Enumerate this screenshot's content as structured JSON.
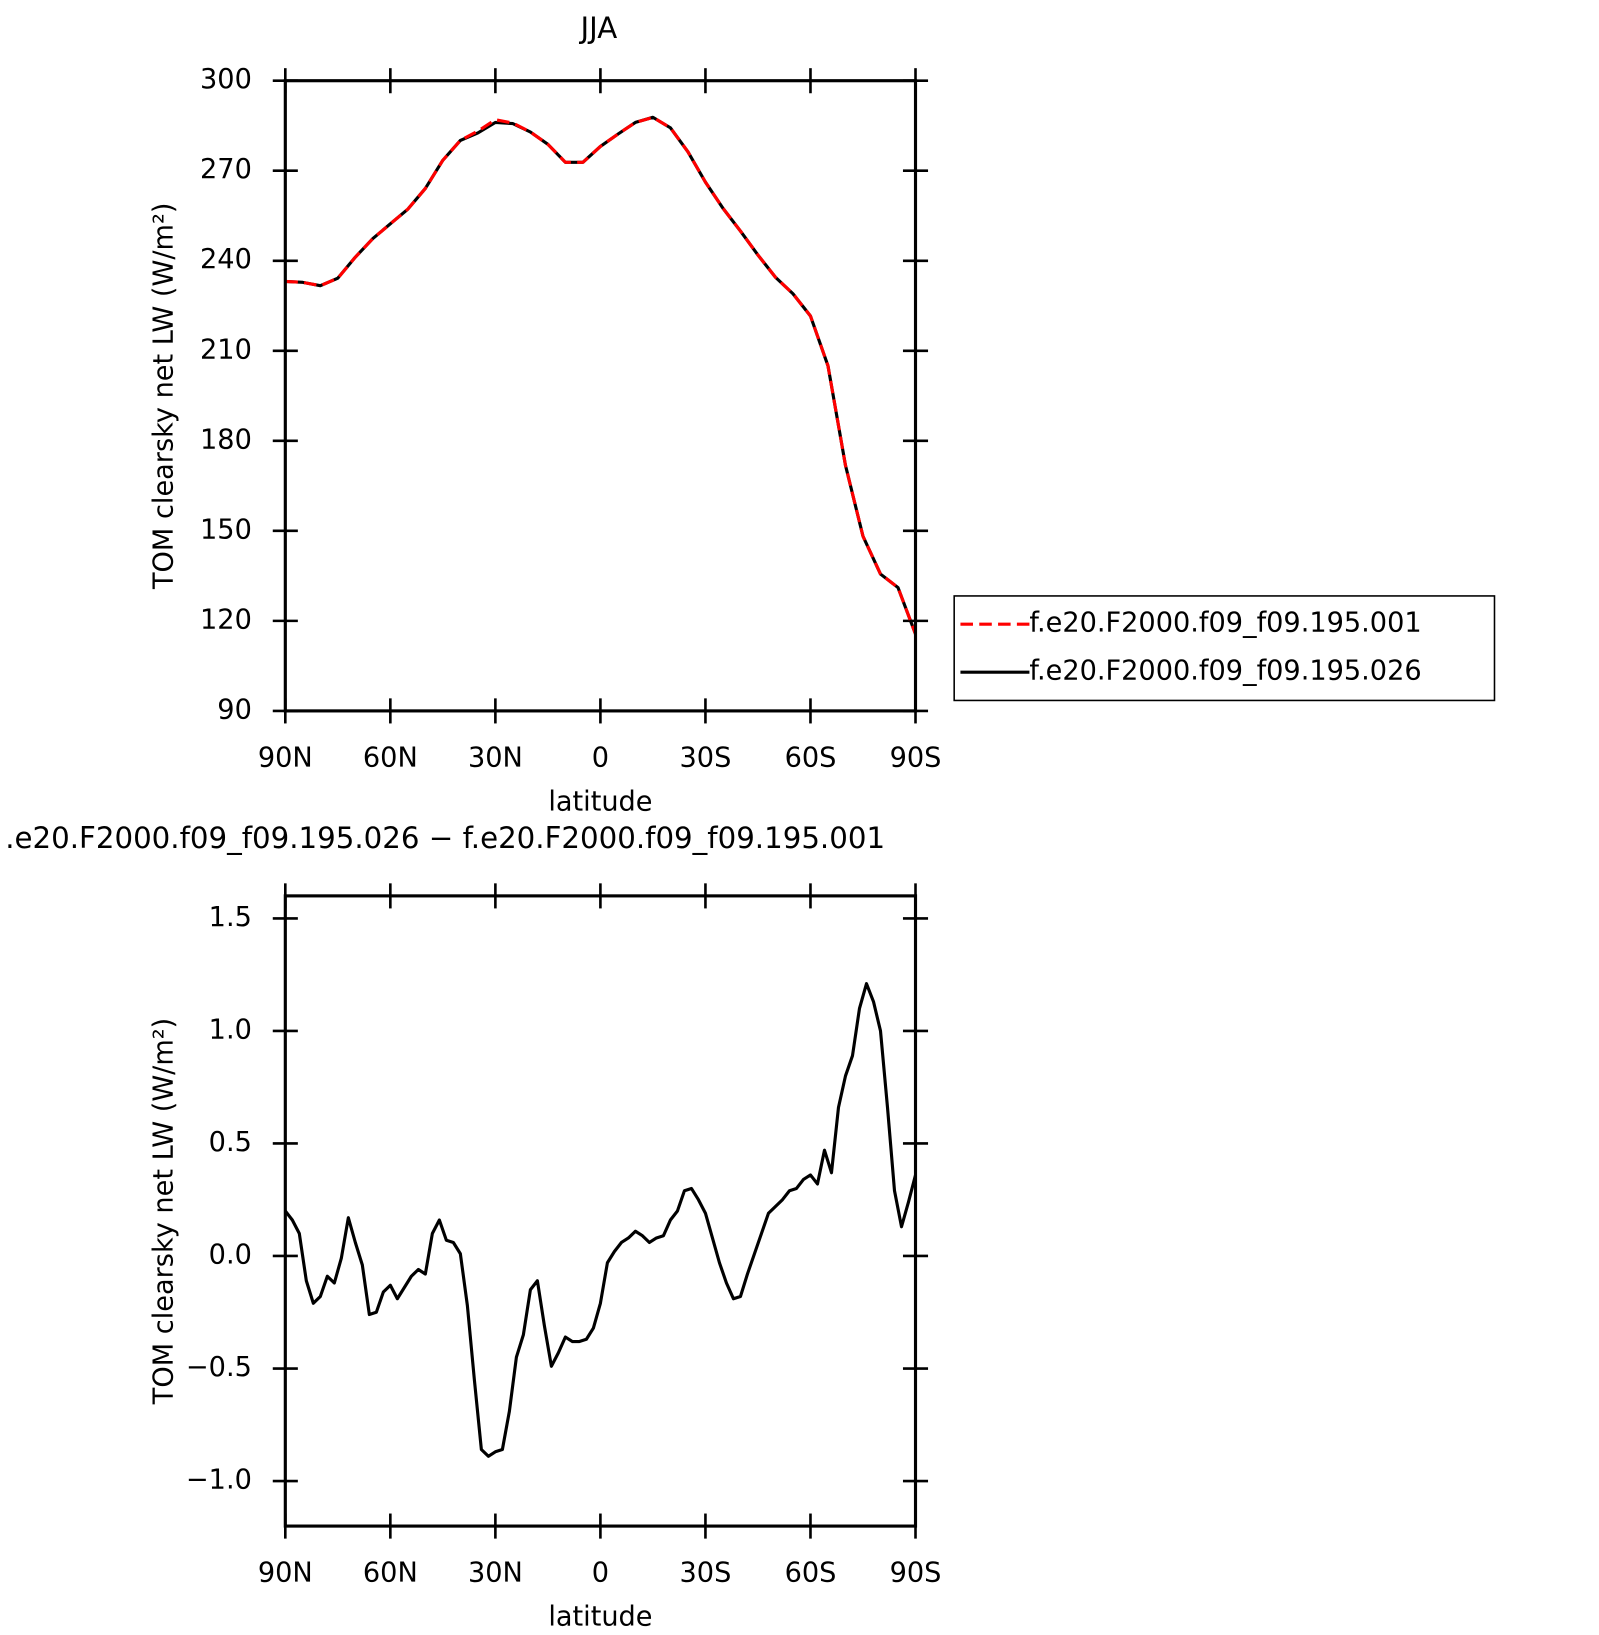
{
  "chart_data": [
    {
      "type": "line",
      "title": "JJA",
      "xlabel": "latitude",
      "ylabel": "TOM clearsky net LW (W/m²)",
      "x": [
        90,
        85,
        80,
        75,
        70,
        65,
        60,
        55,
        50,
        45,
        40,
        35,
        30,
        25,
        20,
        15,
        10,
        5,
        0,
        -5,
        -10,
        -15,
        -20,
        -25,
        -30,
        -35,
        -40,
        -45,
        -50,
        -55,
        -60,
        -65,
        -70,
        -75,
        -80,
        -85,
        -90
      ],
      "series": [
        {
          "name": "f.e20.F2000.f09_f09.195.001",
          "color": "#ff0000",
          "linestyle": "dashed",
          "values": [
            233.1,
            232.8,
            231.7,
            234.2,
            241.2,
            247.4,
            252.3,
            257.2,
            264.1,
            273.5,
            280.1,
            283.2,
            287.0,
            285.9,
            282.9,
            278.8,
            272.8,
            272.8,
            278.1,
            282.2,
            286.1,
            287.8,
            284.3,
            276.3,
            266.2,
            257.5,
            249.9,
            241.9,
            234.5,
            229.0,
            221.6,
            205.0,
            171.8,
            148.2,
            135.6,
            131.1,
            115.6
          ]
        },
        {
          "name": "f.e20.F2000.f09_f09.195.026",
          "color": "#000000",
          "linestyle": "solid",
          "values": [
            233.1,
            232.8,
            231.7,
            234.2,
            241.2,
            247.4,
            252.3,
            257.2,
            264.1,
            273.5,
            280.1,
            282.6,
            286.1,
            285.7,
            282.9,
            278.8,
            272.8,
            272.8,
            278.1,
            282.2,
            286.1,
            287.8,
            284.3,
            276.3,
            266.2,
            257.5,
            249.9,
            241.9,
            234.5,
            229.0,
            221.6,
            205.0,
            171.8,
            148.2,
            135.6,
            131.1,
            115.6
          ]
        }
      ],
      "xlim": [
        90,
        -90
      ],
      "xticks": [
        {
          "value": 90,
          "label": "90N"
        },
        {
          "value": 60,
          "label": "60N"
        },
        {
          "value": 30,
          "label": "30N"
        },
        0,
        {
          "value": -30,
          "label": "30S"
        },
        {
          "value": -60,
          "label": "60S"
        },
        {
          "value": -90,
          "label": "90S"
        }
      ],
      "ylim": [
        90,
        300
      ],
      "yticks": [
        90,
        120,
        150,
        180,
        210,
        240,
        270,
        300
      ],
      "legend": "outside-right"
    },
    {
      "type": "line",
      "title": ".e20.F2000.f09_f09.195.026 − f.e20.F2000.f09_f09.195.001",
      "xlabel": "latitude",
      "ylabel": "TOM clearsky net LW (W/m²)",
      "x": [
        90,
        88,
        86,
        84,
        82,
        80,
        78,
        76,
        74,
        72,
        70,
        68,
        66,
        64,
        62,
        60,
        58,
        56,
        54,
        52,
        50,
        48,
        46,
        44,
        42,
        40,
        38,
        36,
        34,
        32,
        30,
        28,
        26,
        24,
        22,
        20,
        18,
        16,
        14,
        12,
        10,
        8,
        6,
        4,
        2,
        0,
        -2,
        -4,
        -6,
        -8,
        -10,
        -12,
        -14,
        -16,
        -18,
        -20,
        -22,
        -24,
        -26,
        -28,
        -30,
        -32,
        -34,
        -36,
        -38,
        -40,
        -42,
        -44,
        -46,
        -48,
        -50,
        -52,
        -54,
        -56,
        -58,
        -60,
        -62,
        -64,
        -66,
        -68,
        -70,
        -72,
        -74,
        -76,
        -78,
        -80,
        -82,
        -84,
        -86,
        -88,
        -90
      ],
      "series": [
        {
          "color": "#000000",
          "linestyle": "solid",
          "values": [
            0.2,
            0.16,
            0.1,
            -0.11,
            -0.21,
            -0.18,
            -0.09,
            -0.12,
            -0.01,
            0.17,
            0.06,
            -0.04,
            -0.26,
            -0.25,
            -0.16,
            -0.13,
            -0.19,
            -0.14,
            -0.09,
            -0.06,
            -0.08,
            0.1,
            0.16,
            0.07,
            0.06,
            0.01,
            -0.22,
            -0.55,
            -0.86,
            -0.89,
            -0.87,
            -0.86,
            -0.69,
            -0.45,
            -0.35,
            -0.15,
            -0.11,
            -0.31,
            -0.49,
            -0.43,
            -0.36,
            -0.38,
            -0.38,
            -0.37,
            -0.32,
            -0.21,
            -0.03,
            0.02,
            0.06,
            0.08,
            0.11,
            0.09,
            0.06,
            0.08,
            0.09,
            0.16,
            0.2,
            0.29,
            0.3,
            0.25,
            0.19,
            0.08,
            -0.03,
            -0.12,
            -0.19,
            -0.18,
            -0.08,
            0.01,
            0.1,
            0.19,
            0.22,
            0.25,
            0.29,
            0.3,
            0.34,
            0.36,
            0.32,
            0.47,
            0.37,
            0.66,
            0.8,
            0.89,
            1.1,
            1.21,
            1.13,
            1.0,
            0.66,
            0.29,
            0.13,
            0.24,
            0.36
          ]
        }
      ],
      "xlim": [
        90,
        -90
      ],
      "xticks": [
        {
          "value": 90,
          "label": "90N"
        },
        {
          "value": 60,
          "label": "60N"
        },
        {
          "value": 30,
          "label": "30N"
        },
        0,
        {
          "value": -30,
          "label": "30S"
        },
        {
          "value": -60,
          "label": "60S"
        },
        {
          "value": -90,
          "label": "90S"
        }
      ],
      "ylim": [
        -1.2,
        1.6
      ],
      "yticks": [
        {
          "value": -1.0,
          "label": "−1.0"
        },
        {
          "value": -0.5,
          "label": "−0.5"
        },
        {
          "value": 0.0,
          "label": "0.0"
        },
        {
          "value": 0.5,
          "label": "0.5"
        },
        {
          "value": 1.0,
          "label": "1.0"
        },
        {
          "value": 1.5,
          "label": "1.5"
        }
      ]
    }
  ]
}
